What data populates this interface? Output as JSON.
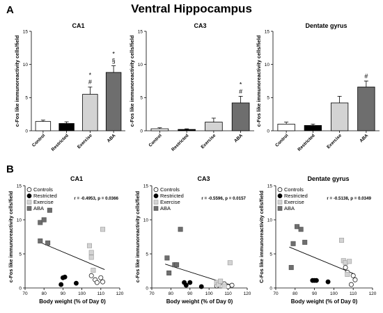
{
  "figure": {
    "title": "Ventral Hippocampus",
    "panel_a_label": "A",
    "panel_b_label": "B"
  },
  "colors": {
    "controls": "#ffffff",
    "restricted": "#000000",
    "exercise": "#d3d3d3",
    "aba": "#6e6e6e",
    "stroke": "#000000"
  },
  "chart_data": [
    {
      "type": "bar",
      "panel": "A",
      "title": "CA1",
      "ylabel": "c-Fos like immunoreactivity cells/field",
      "categories": [
        "Control",
        "Restricted",
        "Exercise",
        "ABA"
      ],
      "values": [
        1.4,
        1.1,
        5.5,
        8.8
      ],
      "errors": [
        0.2,
        0.25,
        1.1,
        1.0
      ],
      "annotations": [
        "",
        "",
        "*\n#",
        "*\n§"
      ],
      "ylim": [
        0,
        15
      ],
      "yticks": [
        0,
        5,
        10,
        15
      ]
    },
    {
      "type": "bar",
      "panel": "A",
      "title": "CA3",
      "ylabel": "c-Fos like immunoreactivity cells/field",
      "categories": [
        "Control",
        "Restricted",
        "Exercise",
        "ABA"
      ],
      "values": [
        0.3,
        0.2,
        1.3,
        4.2
      ],
      "errors": [
        0.15,
        0.1,
        0.6,
        1.0
      ],
      "annotations": [
        "",
        "",
        "",
        "*\n#"
      ],
      "ylim": [
        0,
        15
      ],
      "yticks": [
        0,
        5,
        10,
        15
      ]
    },
    {
      "type": "bar",
      "panel": "A",
      "title": "Dentate gyrus",
      "ylabel": "c-Fos like immunoreactivity cells/field",
      "categories": [
        "Control",
        "Restricted",
        "Exercise",
        "ABA"
      ],
      "values": [
        1.0,
        0.8,
        4.2,
        6.6
      ],
      "errors": [
        0.3,
        0.2,
        1.0,
        0.9
      ],
      "annotations": [
        "",
        "",
        "",
        "#"
      ],
      "ylim": [
        0,
        15
      ],
      "yticks": [
        0,
        5,
        10,
        15
      ]
    },
    {
      "type": "scatter",
      "panel": "B",
      "title": "CA1",
      "ylabel": "c-Fos like immunoreactivity cells/field",
      "xlabel": "Body weight (% of Day 0)",
      "xlim": [
        70,
        120
      ],
      "ylim": [
        0,
        15
      ],
      "xticks": [
        70,
        80,
        90,
        100,
        110,
        120
      ],
      "yticks": [
        0,
        5,
        10,
        15
      ],
      "stat": "r = -0.4953, p = 0.0366",
      "legend": [
        "Controls",
        "Restricted",
        "Exercise",
        "ABA"
      ],
      "series": [
        {
          "name": "Controls",
          "points": [
            [
              105,
              1.8
            ],
            [
              107,
              1.2
            ],
            [
              108,
              0.8
            ],
            [
              110,
              1.5
            ],
            [
              111,
              0.9
            ]
          ]
        },
        {
          "name": "Restricted",
          "points": [
            [
              89,
              0.5
            ],
            [
              90,
              1.5
            ],
            [
              91,
              1.6
            ],
            [
              97,
              0.7
            ]
          ]
        },
        {
          "name": "Exercise",
          "points": [
            [
              104,
              6.2
            ],
            [
              105,
              5.2
            ],
            [
              105,
              4.5
            ],
            [
              106,
              2.6
            ],
            [
              111,
              8.6
            ]
          ]
        },
        {
          "name": "ABA",
          "points": [
            [
              78,
              6.9
            ],
            [
              78,
              9.6
            ],
            [
              80,
              10.0
            ],
            [
              82,
              6.6
            ],
            [
              83,
              11.4
            ]
          ]
        }
      ],
      "regression": {
        "x": [
          77,
          112
        ],
        "y": [
          6.8,
          2.7
        ]
      }
    },
    {
      "type": "scatter",
      "panel": "B",
      "title": "CA3",
      "ylabel": "c-Fos like immunoreactivity cells/field",
      "xlabel": "Body weight (% of Day 0)",
      "xlim": [
        70,
        120
      ],
      "ylim": [
        0,
        15
      ],
      "xticks": [
        70,
        80,
        90,
        100,
        110,
        120
      ],
      "yticks": [
        0,
        5,
        10,
        15
      ],
      "stat": "r = -0.5596, p = 0.0157",
      "legend": [
        "Controls",
        "Restricted",
        "Exercise",
        "ABA"
      ],
      "series": [
        {
          "name": "Controls",
          "points": [
            [
              104,
              0.3
            ],
            [
              106,
              0.8
            ],
            [
              108,
              0.6
            ],
            [
              110,
              0.2
            ],
            [
              112,
              0.4
            ]
          ]
        },
        {
          "name": "Restricted",
          "points": [
            [
              87,
              0.8
            ],
            [
              88,
              0.4
            ],
            [
              90,
              0.8
            ],
            [
              96,
              0.2
            ]
          ]
        },
        {
          "name": "Exercise",
          "points": [
            [
              104,
              0.8
            ],
            [
              105,
              0.5
            ],
            [
              106,
              1.0
            ],
            [
              108,
              0.3
            ],
            [
              111,
              3.7
            ]
          ]
        },
        {
          "name": "ABA",
          "points": [
            [
              78,
              4.4
            ],
            [
              79,
              2.2
            ],
            [
              82,
              3.4
            ],
            [
              83,
              3.4
            ],
            [
              85,
              8.6
            ]
          ]
        }
      ],
      "regression": {
        "x": [
          77,
          113
        ],
        "y": [
          3.5,
          0.3
        ]
      }
    },
    {
      "type": "scatter",
      "panel": "B",
      "title": "Dentate gyrus",
      "ylabel": "C-Fos like immunoreactivity cells/field",
      "xlabel": "Body weight (% of Day 0)",
      "xlim": [
        70,
        120
      ],
      "ylim": [
        0,
        15
      ],
      "xticks": [
        70,
        80,
        90,
        100,
        110,
        120
      ],
      "yticks": [
        0,
        5,
        10,
        15
      ],
      "stat": "r = -0.5138, p = 0.0349",
      "legend": [
        "Controls",
        "Restricted",
        "Exercise",
        "ABA"
      ],
      "series": [
        {
          "name": "Controls",
          "points": [
            [
              106,
              3.0
            ],
            [
              107,
              2.3
            ],
            [
              109,
              0.5
            ],
            [
              110,
              1.8
            ],
            [
              111,
              1.2
            ]
          ]
        },
        {
          "name": "Restricted",
          "points": [
            [
              89,
              1.1
            ],
            [
              90,
              1.1
            ],
            [
              91,
              1.1
            ],
            [
              97,
              0.9
            ]
          ]
        },
        {
          "name": "Exercise",
          "points": [
            [
              104,
              7.0
            ],
            [
              105,
              4.0
            ],
            [
              106,
              3.7
            ],
            [
              107,
              2.0
            ],
            [
              108,
              3.9
            ]
          ]
        },
        {
          "name": "ABA",
          "points": [
            [
              78,
              3.0
            ],
            [
              79,
              6.5
            ],
            [
              81,
              9.0
            ],
            [
              83,
              8.6
            ],
            [
              85,
              6.7
            ]
          ]
        }
      ],
      "regression": {
        "x": [
          77,
          111
        ],
        "y": [
          6.0,
          2.0
        ]
      }
    }
  ]
}
